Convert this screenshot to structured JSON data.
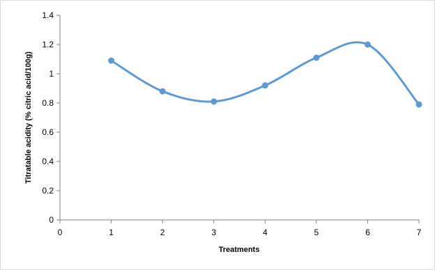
{
  "chart_data": {
    "type": "scatter",
    "title": "",
    "xlabel": "Treatments",
    "ylabel": "Titratable acidity (% citric acid/100g)",
    "xlim": [
      0,
      7
    ],
    "ylim": [
      0,
      1.4
    ],
    "x_ticks": [
      "0",
      "1",
      "2",
      "3",
      "4",
      "5",
      "6",
      "7"
    ],
    "y_ticks": [
      "0",
      "0.2",
      "0.4",
      "0.6",
      "0.8",
      "1",
      "1.2",
      "1.4"
    ],
    "grid": false,
    "legend": "none",
    "line_style": "smoothed",
    "series": [
      {
        "color": "#5b9bd5",
        "x": [
          1,
          2,
          3,
          4,
          5,
          6,
          7
        ],
        "y": [
          1.09,
          0.88,
          0.81,
          0.92,
          1.11,
          1.2,
          0.79
        ]
      }
    ]
  }
}
